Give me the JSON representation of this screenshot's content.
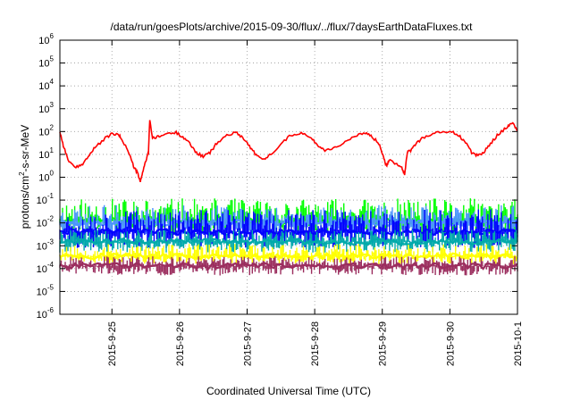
{
  "chart_data": {
    "type": "line",
    "title": "/data/run/goesPlots/archive/2015-09-30/flux/../flux/7daysEarthDataFluxes.txt",
    "xlabel": "Coordinated Universal Time (UTC)",
    "ylabel": "protons/cm2-s-sr-MeV",
    "ylabel_parts": {
      "before": "protons/cm",
      "sup": "2",
      "after": "-s-sr-MeV"
    },
    "yscale": "log",
    "ylim_exp": [
      -6,
      6
    ],
    "y_tick_exponents": [
      -6,
      -5,
      -4,
      -3,
      -2,
      -1,
      0,
      1,
      2,
      3,
      4,
      5,
      6
    ],
    "y_tick_base": "10",
    "xlim_days": [
      -0.77,
      6.0
    ],
    "x_ticks": [
      {
        "label": "2015-9-25",
        "day": 0
      },
      {
        "label": "2015-9-26",
        "day": 1
      },
      {
        "label": "2015-9-27",
        "day": 2
      },
      {
        "label": "2015-9-28",
        "day": 3
      },
      {
        "label": "2015-9-29",
        "day": 4
      },
      {
        "label": "2015-9-30",
        "day": 5
      },
      {
        "label": "2015-10-1",
        "day": 6
      }
    ],
    "grid": true,
    "series": [
      {
        "color": "#ff0000",
        "style": "line",
        "points": [
          [
            -0.77,
            100
          ],
          [
            -0.72,
            25
          ],
          [
            -0.65,
            6
          ],
          [
            -0.55,
            2.5
          ],
          [
            -0.45,
            3.5
          ],
          [
            -0.35,
            8
          ],
          [
            -0.25,
            20
          ],
          [
            -0.1,
            50
          ],
          [
            0.0,
            80
          ],
          [
            0.1,
            70
          ],
          [
            0.15,
            45
          ],
          [
            0.25,
            12
          ],
          [
            0.32,
            3
          ],
          [
            0.38,
            1.5
          ],
          [
            0.42,
            0.6
          ],
          [
            0.46,
            2
          ],
          [
            0.5,
            5
          ],
          [
            0.54,
            12
          ],
          [
            0.56,
            350
          ],
          [
            0.6,
            50
          ],
          [
            0.7,
            60
          ],
          [
            0.8,
            80
          ],
          [
            0.95,
            90
          ],
          [
            1.05,
            60
          ],
          [
            1.15,
            30
          ],
          [
            1.25,
            12
          ],
          [
            1.35,
            8
          ],
          [
            1.45,
            12
          ],
          [
            1.55,
            30
          ],
          [
            1.7,
            70
          ],
          [
            1.85,
            90
          ],
          [
            1.95,
            50
          ],
          [
            2.05,
            20
          ],
          [
            2.15,
            8
          ],
          [
            2.25,
            6
          ],
          [
            2.35,
            10
          ],
          [
            2.5,
            30
          ],
          [
            2.65,
            70
          ],
          [
            2.8,
            90
          ],
          [
            2.95,
            50
          ],
          [
            3.05,
            25
          ],
          [
            3.15,
            15
          ],
          [
            3.3,
            20
          ],
          [
            3.45,
            35
          ],
          [
            3.6,
            60
          ],
          [
            3.75,
            90
          ],
          [
            3.85,
            60
          ],
          [
            3.95,
            30
          ],
          [
            4.02,
            8
          ],
          [
            4.06,
            3
          ],
          [
            4.1,
            6
          ],
          [
            4.2,
            4
          ],
          [
            4.28,
            3
          ],
          [
            4.33,
            1.3
          ],
          [
            4.37,
            12
          ],
          [
            4.42,
            15
          ],
          [
            4.5,
            30
          ],
          [
            4.6,
            55
          ],
          [
            4.75,
            80
          ],
          [
            4.9,
            100
          ],
          [
            5.05,
            90
          ],
          [
            5.15,
            60
          ],
          [
            5.25,
            30
          ],
          [
            5.32,
            12
          ],
          [
            5.4,
            9
          ],
          [
            5.5,
            12
          ],
          [
            5.6,
            30
          ],
          [
            5.72,
            80
          ],
          [
            5.85,
            160
          ],
          [
            5.93,
            230
          ],
          [
            6.0,
            110
          ]
        ]
      },
      {
        "color": "#00ff00",
        "style": "band",
        "base": 0.012,
        "lo": 0.003,
        "hi": 0.12,
        "seed": 11
      },
      {
        "color": "#4d94ff",
        "style": "band",
        "base": 0.01,
        "lo": 0.003,
        "hi": 0.06,
        "seed": 23
      },
      {
        "color": "#0000ff",
        "style": "band",
        "base": 0.004,
        "lo": 0.0008,
        "hi": 0.04,
        "seed": 37
      },
      {
        "color": "#00aaaa",
        "style": "band",
        "base": 0.0015,
        "lo": 0.0005,
        "hi": 0.005,
        "seed": 41
      },
      {
        "color": "#ffff00",
        "style": "band",
        "base": 0.00035,
        "lo": 0.00015,
        "hi": 0.0012,
        "seed": 53
      },
      {
        "color": "#9b2d5e",
        "style": "band",
        "base": 0.00013,
        "lo": 5e-05,
        "hi": 0.00035,
        "seed": 67
      }
    ]
  }
}
